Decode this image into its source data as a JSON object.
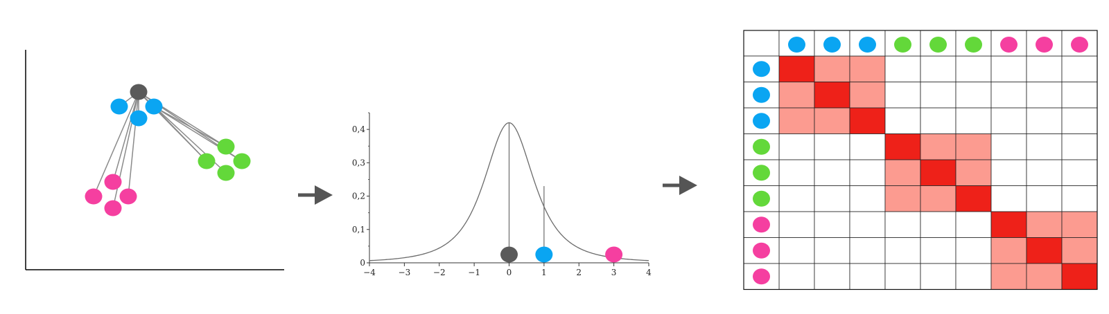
{
  "colors": {
    "blue": "#0aa5f2",
    "green": "#63d83a",
    "pink": "#f53fa0",
    "gray": "#5a5a5a",
    "strong": "#ee2119",
    "weak": "#fc9b90",
    "line": "#8a8a8a"
  },
  "scatter": {
    "center": "gray",
    "points": [
      "blue",
      "blue",
      "blue",
      "green",
      "green",
      "green",
      "pink",
      "pink",
      "pink",
      "pink"
    ]
  },
  "arrow_icon": "arrow-right-icon",
  "chart_data": {
    "type": "line",
    "series": [
      {
        "function": "student-t (cauchy-like)",
        "peak": 0.42
      }
    ],
    "x_ticks": [
      "−4",
      "−3",
      "−2",
      "−1",
      "0",
      "1",
      "2",
      "3",
      "4"
    ],
    "y_ticks": [
      "0",
      "0,1",
      "0,2",
      "0,3",
      "0,4"
    ],
    "xlim": [
      -4,
      4
    ],
    "ylim": [
      0,
      0.45
    ],
    "markers": [
      {
        "color": "gray",
        "x": 0,
        "y": 0.42
      },
      {
        "color": "blue",
        "x": 1,
        "y": 0.23
      },
      {
        "color": "pink",
        "x": 3,
        "y": 0.03
      }
    ]
  },
  "matrix": {
    "labels": [
      "blue",
      "blue",
      "blue",
      "green",
      "green",
      "green",
      "pink",
      "pink",
      "pink"
    ],
    "cells": [
      [
        2,
        1,
        1,
        0,
        0,
        0,
        0,
        0,
        0
      ],
      [
        1,
        2,
        1,
        0,
        0,
        0,
        0,
        0,
        0
      ],
      [
        1,
        1,
        2,
        0,
        0,
        0,
        0,
        0,
        0
      ],
      [
        0,
        0,
        0,
        2,
        1,
        1,
        0,
        0,
        0
      ],
      [
        0,
        0,
        0,
        1,
        2,
        1,
        0,
        0,
        0
      ],
      [
        0,
        0,
        0,
        1,
        1,
        2,
        0,
        0,
        0
      ],
      [
        0,
        0,
        0,
        0,
        0,
        0,
        2,
        1,
        1
      ],
      [
        0,
        0,
        0,
        0,
        0,
        0,
        1,
        2,
        1
      ],
      [
        0,
        0,
        0,
        0,
        0,
        0,
        1,
        1,
        2
      ]
    ]
  }
}
